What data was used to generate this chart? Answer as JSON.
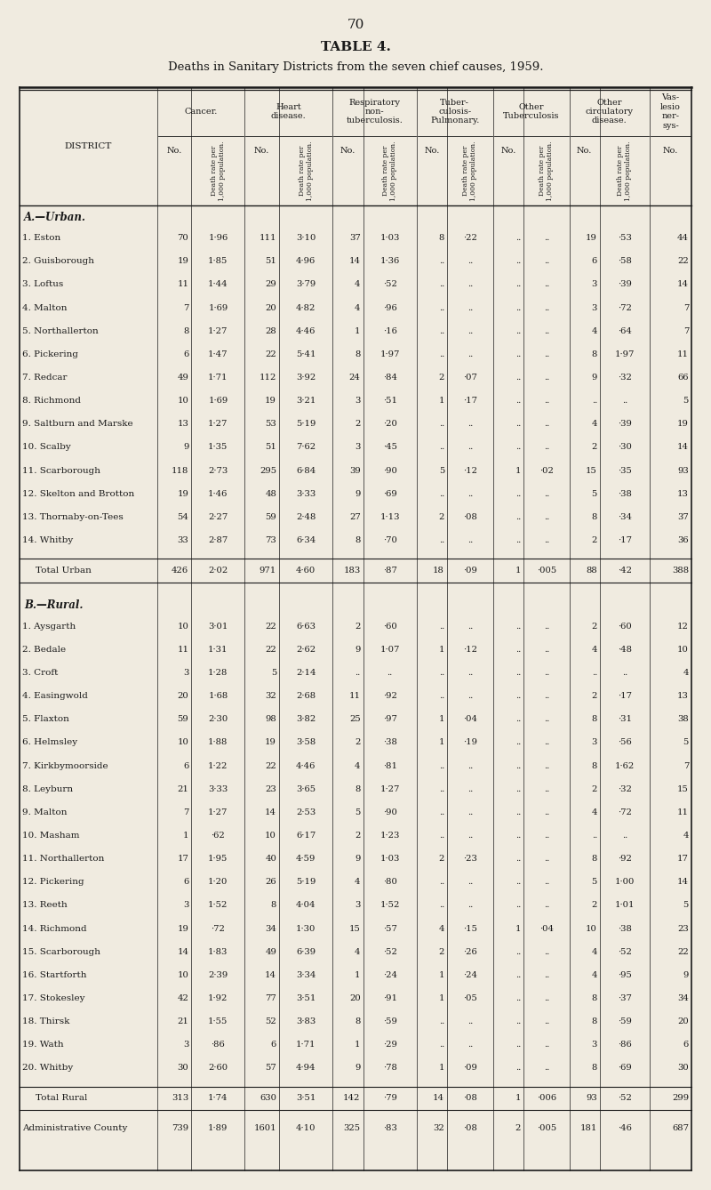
{
  "page_number": "70",
  "table_title": "TABLE 4.",
  "table_subtitle": "Deaths in Sanitary Districts from the seven chief causes, 1959.",
  "bg_color": "#f0ebe0",
  "text_color": "#1a1a1a",
  "urban_header": "A.—Urban.",
  "rural_header": "B.—Rural.",
  "urban_rows": [
    [
      "1. Eston",
      "70",
      "1·96",
      "111",
      "3·10",
      "37",
      "1·03",
      "8",
      "·22",
      "..",
      "..",
      "19",
      "·53",
      "44"
    ],
    [
      "2. Guisborough",
      "19",
      "1·85",
      "51",
      "4·96",
      "14",
      "1·36",
      "..",
      "..",
      "..",
      "..",
      "6",
      "·58",
      "22"
    ],
    [
      "3. Loftus",
      "11",
      "1·44",
      "29",
      "3·79",
      "4",
      "·52",
      "..",
      "..",
      "..",
      "..",
      "3",
      "·39",
      "14"
    ],
    [
      "4. Malton",
      "7",
      "1·69",
      "20",
      "4·82",
      "4",
      "·96",
      "..",
      "..",
      "..",
      "..",
      "3",
      "·72",
      "7"
    ],
    [
      "5. Northallerton",
      "8",
      "1·27",
      "28",
      "4·46",
      "1",
      "·16",
      "..",
      "..",
      "..",
      "..",
      "4",
      "·64",
      "7"
    ],
    [
      "6. Pickering",
      "6",
      "1·47",
      "22",
      "5·41",
      "8",
      "1·97",
      "..",
      "..",
      "..",
      "..",
      "8",
      "1·97",
      "11"
    ],
    [
      "7. Redcar",
      "49",
      "1·71",
      "112",
      "3·92",
      "24",
      "·84",
      "2",
      "·07",
      "..",
      "..",
      "9",
      "·32",
      "66"
    ],
    [
      "8. Richmond",
      "10",
      "1·69",
      "19",
      "3·21",
      "3",
      "·51",
      "1",
      "·17",
      "..",
      "..",
      "..",
      "..",
      "5"
    ],
    [
      "9. Saltburn and Marske",
      "13",
      "1·27",
      "53",
      "5·19",
      "2",
      "·20",
      "..",
      "..",
      "..",
      "..",
      "4",
      "·39",
      "19"
    ],
    [
      "10. Scalby",
      "9",
      "1·35",
      "51",
      "7·62",
      "3",
      "·45",
      "..",
      "..",
      "..",
      "..",
      "2",
      "·30",
      "14"
    ],
    [
      "11. Scarborough",
      "118",
      "2·73",
      "295",
      "6·84",
      "39",
      "·90",
      "5",
      "·12",
      "1",
      "·02",
      "15",
      "·35",
      "93"
    ],
    [
      "12. Skelton and Brotton",
      "19",
      "1·46",
      "48",
      "3·33",
      "9",
      "·69",
      "..",
      "..",
      "..",
      "..",
      "5",
      "·38",
      "13"
    ],
    [
      "13. Thornaby-on-Tees",
      "54",
      "2·27",
      "59",
      "2·48",
      "27",
      "1·13",
      "2",
      "·08",
      "..",
      "..",
      "8",
      "·34",
      "37"
    ],
    [
      "14. Whitby",
      "33",
      "2·87",
      "73",
      "6·34",
      "8",
      "·70",
      "..",
      "..",
      "..",
      "..",
      "2",
      "·17",
      "36"
    ]
  ],
  "urban_total": [
    "Total Urban",
    "426",
    "2·02",
    "971",
    "4·60",
    "183",
    "·87",
    "18",
    "·09",
    "1",
    "·005",
    "88",
    "·42",
    "388"
  ],
  "rural_rows": [
    [
      "1. Aysgarth",
      "10",
      "3·01",
      "22",
      "6·63",
      "2",
      "·60",
      "..",
      "..",
      "..",
      "..",
      "2",
      "·60",
      "12"
    ],
    [
      "2. Bedale",
      "11",
      "1·31",
      "22",
      "2·62",
      "9",
      "1·07",
      "1",
      "·12",
      "..",
      "..",
      "4",
      "·48",
      "10"
    ],
    [
      "3. Croft",
      "3",
      "1·28",
      "5",
      "2·14",
      "..",
      "..",
      "..",
      "..",
      "..",
      "..",
      "..",
      "..",
      "4"
    ],
    [
      "4. Easingwold",
      "20",
      "1·68",
      "32",
      "2·68",
      "11",
      "·92",
      "..",
      "..",
      "..",
      "..",
      "2",
      "·17",
      "13"
    ],
    [
      "5. Flaxton",
      "59",
      "2·30",
      "98",
      "3·82",
      "25",
      "·97",
      "1",
      "·04",
      "..",
      "..",
      "8",
      "·31",
      "38"
    ],
    [
      "6. Helmsley",
      "10",
      "1·88",
      "19",
      "3·58",
      "2",
      "·38",
      "1",
      "·19",
      "..",
      "..",
      "3",
      "·56",
      "5"
    ],
    [
      "7. Kirkbymoorside",
      "6",
      "1·22",
      "22",
      "4·46",
      "4",
      "·81",
      "..",
      "..",
      "..",
      "..",
      "8",
      "1·62",
      "7"
    ],
    [
      "8. Leyburn",
      "21",
      "3·33",
      "23",
      "3·65",
      "8",
      "1·27",
      "..",
      "..",
      "..",
      "..",
      "2",
      "·32",
      "15"
    ],
    [
      "9. Malton",
      "7",
      "1·27",
      "14",
      "2·53",
      "5",
      "·90",
      "..",
      "..",
      "..",
      "..",
      "4",
      "·72",
      "11"
    ],
    [
      "10. Masham",
      "1",
      "·62",
      "10",
      "6·17",
      "2",
      "1·23",
      "..",
      "..",
      "..",
      "..",
      "..",
      "..",
      "4"
    ],
    [
      "11. Northallerton",
      "17",
      "1·95",
      "40",
      "4·59",
      "9",
      "1·03",
      "2",
      "·23",
      "..",
      "..",
      "8",
      "·92",
      "17"
    ],
    [
      "12. Pickering",
      "6",
      "1·20",
      "26",
      "5·19",
      "4",
      "·80",
      "..",
      "..",
      "..",
      "..",
      "5",
      "1·00",
      "14"
    ],
    [
      "13. Reeth",
      "3",
      "1·52",
      "8",
      "4·04",
      "3",
      "1·52",
      "..",
      "..",
      "..",
      "..",
      "2",
      "1·01",
      "5"
    ],
    [
      "14. Richmond",
      "19",
      "·72",
      "34",
      "1·30",
      "15",
      "·57",
      "4",
      "·15",
      "1",
      "·04",
      "10",
      "·38",
      "23"
    ],
    [
      "15. Scarborough",
      "14",
      "1·83",
      "49",
      "6·39",
      "4",
      "·52",
      "2",
      "·26",
      "..",
      "..",
      "4",
      "·52",
      "22"
    ],
    [
      "16. Startforth",
      "10",
      "2·39",
      "14",
      "3·34",
      "1",
      "·24",
      "1",
      "·24",
      "..",
      "..",
      "4",
      "·95",
      "9"
    ],
    [
      "17. Stokesley",
      "42",
      "1·92",
      "77",
      "3·51",
      "20",
      "·91",
      "1",
      "·05",
      "..",
      "..",
      "8",
      "·37",
      "34"
    ],
    [
      "18. Thirsk",
      "21",
      "1·55",
      "52",
      "3·83",
      "8",
      "·59",
      "..",
      "..",
      "..",
      "..",
      "8",
      "·59",
      "20"
    ],
    [
      "19. Wath",
      "3",
      "·86",
      "6",
      "1·71",
      "1",
      "·29",
      "..",
      "..",
      "..",
      "..",
      "3",
      "·86",
      "6"
    ],
    [
      "20. Whitby",
      "30",
      "2·60",
      "57",
      "4·94",
      "9",
      "·78",
      "1",
      "·09",
      "..",
      "..",
      "8",
      "·69",
      "30"
    ]
  ],
  "rural_total": [
    "Total Rural",
    "313",
    "1·74",
    "630",
    "3·51",
    "142",
    "·79",
    "14",
    "·08",
    "1",
    "·006",
    "93",
    "·52",
    "299"
  ],
  "admin_total": [
    "Administrative County",
    "739",
    "1·89",
    "1601",
    "4·10",
    "325",
    "·83",
    "32",
    "·08",
    "2",
    "·005",
    "181",
    "·46",
    "687"
  ]
}
